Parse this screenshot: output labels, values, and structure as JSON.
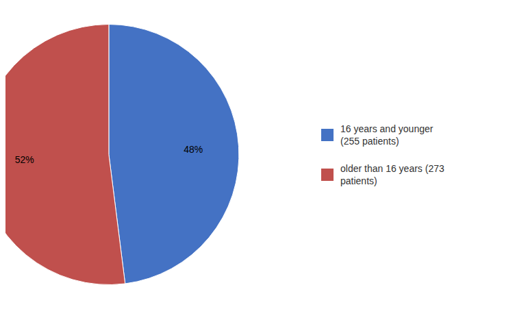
{
  "chart_data": {
    "type": "pie",
    "categories": [
      "16 years and younger\n(255 patients)",
      "older than 16 years (273\npatients)"
    ],
    "values": [
      48,
      52
    ],
    "value_labels": [
      "48%",
      "52%"
    ],
    "colors": [
      "#4472C4",
      "#C0504D"
    ],
    "data_labels": true,
    "legend": "right"
  }
}
